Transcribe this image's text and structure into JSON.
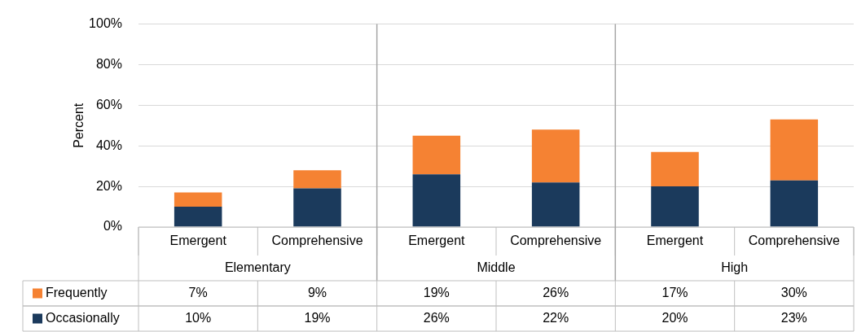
{
  "chart_data": {
    "type": "bar",
    "stacked": true,
    "ylabel": "Percent",
    "categories": [
      "Emergent",
      "Comprehensive",
      "Emergent",
      "Comprehensive",
      "Emergent",
      "Comprehensive"
    ],
    "annotations": [
      "Elementary",
      "Middle",
      "High"
    ],
    "series": [
      {
        "name": "Occasionally",
        "color": "#1b3a5c",
        "values": [
          10,
          19,
          26,
          22,
          20,
          23
        ],
        "value_labels": [
          "10%",
          "19%",
          "26%",
          "22%",
          "20%",
          "23%"
        ]
      },
      {
        "name": "Frequently",
        "color": "#f58233",
        "values": [
          7,
          9,
          19,
          26,
          17,
          30
        ],
        "value_labels": [
          "7%",
          "9%",
          "19%",
          "26%",
          "17%",
          "30%"
        ]
      }
    ],
    "ylim": [
      0,
      100
    ],
    "yticks": [
      {
        "value": 0,
        "label": "0%"
      },
      {
        "value": 20,
        "label": "20%"
      },
      {
        "value": 40,
        "label": "40%"
      },
      {
        "value": 60,
        "label": "60%"
      },
      {
        "value": 80,
        "label": "80%"
      },
      {
        "value": 100,
        "label": "100%"
      }
    ],
    "grid": "y",
    "legend": "bottom"
  }
}
